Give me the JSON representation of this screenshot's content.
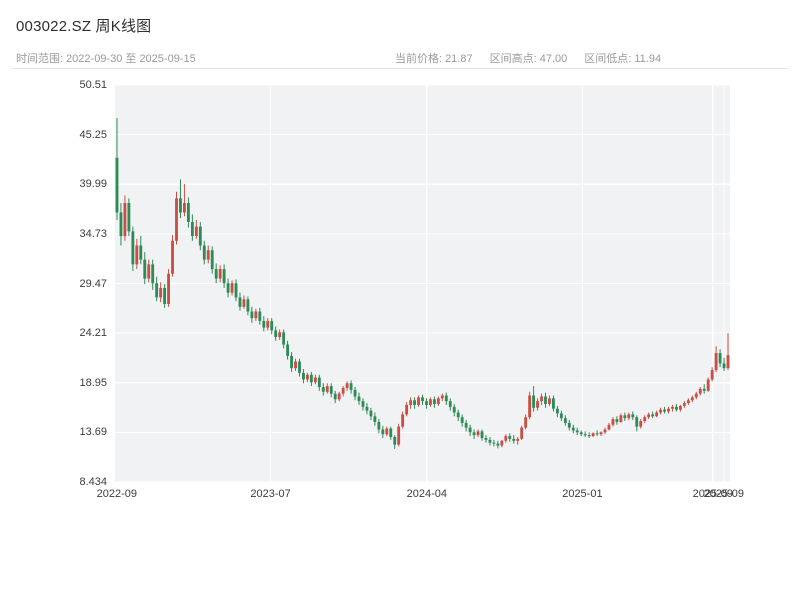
{
  "page": {
    "title": "003022.SZ 周K线图"
  },
  "header": {
    "range_label": "时间范围:",
    "range_value": "2022-09-30 至 2025-09-15",
    "stats": [
      {
        "label": "当前价格:",
        "value": "21.87"
      },
      {
        "label": "区间高点:",
        "value": "47.00"
      },
      {
        "label": "区间低点:",
        "value": "11.94"
      }
    ]
  },
  "chart_data": {
    "type": "candlestick",
    "title": "003022.SZ 周K线图",
    "symbol": "003022.SZ",
    "interval": "weekly",
    "current_price": 21.87,
    "range_high": 47.0,
    "range_low": 11.94,
    "ylim": [
      8.434,
      50.51
    ],
    "y_ticks": [
      "50.51",
      "45.25",
      "39.99",
      "34.73",
      "29.47",
      "24.21",
      "18.95",
      "13.69",
      "8.434"
    ],
    "x_ticks": [
      {
        "label": "2022-09",
        "pos": 0.003
      },
      {
        "label": "2023-07",
        "pos": 0.253
      },
      {
        "label": "2024-04",
        "pos": 0.507
      },
      {
        "label": "2025-01",
        "pos": 0.76
      },
      {
        "label": "2025-09",
        "pos": 0.972
      },
      {
        "label": "2025-09",
        "pos": 0.99
      }
    ],
    "grid": true,
    "colors": {
      "up": "#c94f44",
      "down": "#2e8b57",
      "plot_bg": "#f1f2f4",
      "grid": "#ffffff"
    },
    "columns": [
      "date",
      "open",
      "high",
      "low",
      "close"
    ],
    "candles": [
      [
        "2022-09-30",
        42.8,
        47.0,
        36.2,
        37.0
      ],
      [
        "2022-10-07",
        37.0,
        38.0,
        33.5,
        34.5
      ],
      [
        "2022-10-14",
        34.5,
        38.8,
        34.0,
        38.0
      ],
      [
        "2022-10-21",
        38.0,
        38.5,
        34.5,
        35.0
      ],
      [
        "2022-10-28",
        35.0,
        35.5,
        30.8,
        31.5
      ],
      [
        "2022-11-04",
        31.5,
        34.2,
        31.0,
        33.5
      ],
      [
        "2022-11-11",
        33.5,
        34.5,
        31.5,
        32.0
      ],
      [
        "2022-11-18",
        32.0,
        32.8,
        29.4,
        30.0
      ],
      [
        "2022-11-25",
        30.0,
        32.0,
        29.6,
        31.5
      ],
      [
        "2022-12-02",
        31.5,
        32.0,
        28.8,
        29.5
      ],
      [
        "2022-12-09",
        29.5,
        30.2,
        27.6,
        28.0
      ],
      [
        "2022-12-16",
        28.0,
        29.6,
        27.5,
        29.0
      ],
      [
        "2022-12-23",
        29.0,
        29.4,
        26.9,
        27.3
      ],
      [
        "2022-12-30",
        27.3,
        31.0,
        27.0,
        30.5
      ],
      [
        "2023-01-06",
        30.5,
        34.6,
        30.2,
        34.0
      ],
      [
        "2023-01-13",
        34.0,
        39.2,
        33.6,
        38.5
      ],
      [
        "2023-01-20",
        38.5,
        40.5,
        36.4,
        37.0
      ],
      [
        "2023-01-27",
        37.0,
        40.0,
        36.6,
        38.0
      ],
      [
        "2023-02-03",
        38.0,
        38.6,
        35.4,
        36.0
      ],
      [
        "2023-02-10",
        36.0,
        36.8,
        34.0,
        34.5
      ],
      [
        "2023-02-17",
        34.5,
        36.2,
        34.2,
        35.5
      ],
      [
        "2023-02-24",
        35.5,
        36.0,
        33.0,
        33.5
      ],
      [
        "2023-03-03",
        33.5,
        34.0,
        31.5,
        32.0
      ],
      [
        "2023-03-10",
        32.0,
        33.5,
        31.6,
        33.0
      ],
      [
        "2023-03-17",
        33.0,
        33.4,
        30.5,
        31.0
      ],
      [
        "2023-03-24",
        31.0,
        31.6,
        29.5,
        30.0
      ],
      [
        "2023-03-31",
        30.0,
        31.4,
        29.6,
        31.0
      ],
      [
        "2023-04-07",
        31.0,
        31.5,
        29.0,
        29.5
      ],
      [
        "2023-04-14",
        29.5,
        30.0,
        28.0,
        28.5
      ],
      [
        "2023-04-21",
        28.5,
        29.8,
        28.2,
        29.5
      ],
      [
        "2023-04-28",
        29.5,
        29.9,
        27.6,
        28.0
      ],
      [
        "2023-05-05",
        28.0,
        28.5,
        26.6,
        27.0
      ],
      [
        "2023-05-12",
        27.0,
        28.2,
        26.8,
        27.8
      ],
      [
        "2023-05-19",
        27.8,
        28.1,
        26.1,
        26.5
      ],
      [
        "2023-05-26",
        26.5,
        27.0,
        25.3,
        25.8
      ],
      [
        "2023-06-02",
        25.8,
        26.8,
        25.5,
        26.5
      ],
      [
        "2023-06-09",
        26.5,
        26.9,
        25.1,
        25.5
      ],
      [
        "2023-06-16",
        25.5,
        26.0,
        24.4,
        24.8
      ],
      [
        "2023-06-23",
        24.8,
        25.8,
        24.5,
        25.5
      ],
      [
        "2023-06-30",
        25.5,
        25.8,
        24.1,
        24.5
      ],
      [
        "2023-07-07",
        24.5,
        24.9,
        23.4,
        23.8
      ],
      [
        "2023-07-14",
        23.8,
        24.6,
        23.5,
        24.3
      ],
      [
        "2023-07-21",
        24.3,
        24.6,
        22.6,
        23.0
      ],
      [
        "2023-07-28",
        23.0,
        23.4,
        21.4,
        21.8
      ],
      [
        "2023-08-04",
        21.8,
        22.2,
        20.1,
        20.5
      ],
      [
        "2023-08-11",
        20.5,
        21.5,
        20.2,
        21.2
      ],
      [
        "2023-08-18",
        21.2,
        21.5,
        19.6,
        20.0
      ],
      [
        "2023-08-25",
        20.0,
        20.4,
        18.9,
        19.3
      ],
      [
        "2023-09-01",
        19.3,
        20.0,
        19.0,
        19.8
      ],
      [
        "2023-09-08",
        19.8,
        20.1,
        18.6,
        19.0
      ],
      [
        "2023-09-15",
        19.0,
        19.8,
        18.8,
        19.5
      ],
      [
        "2023-09-22",
        19.5,
        19.8,
        18.1,
        18.5
      ],
      [
        "2023-09-29",
        18.5,
        18.9,
        17.6,
        18.0
      ],
      [
        "2023-10-06",
        18.0,
        18.9,
        17.8,
        18.6
      ],
      [
        "2023-10-13",
        18.6,
        18.9,
        17.4,
        17.8
      ],
      [
        "2023-10-20",
        17.8,
        18.1,
        16.8,
        17.2
      ],
      [
        "2023-10-27",
        17.2,
        18.0,
        17.0,
        17.8
      ],
      [
        "2023-11-03",
        17.8,
        18.6,
        17.5,
        18.4
      ],
      [
        "2023-11-10",
        18.4,
        19.1,
        18.1,
        18.9
      ],
      [
        "2023-11-17",
        18.9,
        19.2,
        17.8,
        18.2
      ],
      [
        "2023-11-24",
        18.2,
        18.5,
        17.1,
        17.5
      ],
      [
        "2023-12-01",
        17.5,
        17.9,
        16.6,
        17.0
      ],
      [
        "2023-12-08",
        17.0,
        17.3,
        16.0,
        16.4
      ],
      [
        "2023-12-15",
        16.4,
        16.8,
        15.6,
        16.0
      ],
      [
        "2023-12-22",
        16.0,
        16.3,
        15.0,
        15.4
      ],
      [
        "2023-12-29",
        15.4,
        15.8,
        14.4,
        14.8
      ],
      [
        "2024-01-05",
        14.8,
        15.1,
        13.6,
        14.0
      ],
      [
        "2024-01-12",
        14.0,
        14.4,
        13.1,
        13.5
      ],
      [
        "2024-01-19",
        13.5,
        14.3,
        13.3,
        14.1
      ],
      [
        "2024-01-26",
        14.1,
        14.3,
        12.9,
        13.2
      ],
      [
        "2024-02-02",
        13.2,
        13.4,
        11.94,
        12.4
      ],
      [
        "2024-02-09",
        12.4,
        14.6,
        12.2,
        14.3
      ],
      [
        "2024-02-16",
        14.3,
        15.9,
        14.1,
        15.6
      ],
      [
        "2024-02-23",
        15.6,
        16.9,
        15.4,
        16.6
      ],
      [
        "2024-03-01",
        16.6,
        17.4,
        16.2,
        17.1
      ],
      [
        "2024-03-08",
        17.1,
        17.4,
        16.2,
        16.6
      ],
      [
        "2024-03-15",
        16.6,
        17.6,
        16.4,
        17.4
      ],
      [
        "2024-03-22",
        17.4,
        17.7,
        16.6,
        17.0
      ],
      [
        "2024-03-29",
        17.0,
        17.3,
        16.2,
        16.6
      ],
      [
        "2024-04-05",
        16.6,
        17.4,
        16.4,
        17.2
      ],
      [
        "2024-04-12",
        17.2,
        17.5,
        16.3,
        16.7
      ],
      [
        "2024-04-19",
        16.7,
        17.5,
        16.5,
        17.3
      ],
      [
        "2024-04-26",
        17.3,
        17.8,
        17.0,
        17.6
      ],
      [
        "2024-05-03",
        17.6,
        17.9,
        16.6,
        17.0
      ],
      [
        "2024-05-10",
        17.0,
        17.3,
        16.0,
        16.4
      ],
      [
        "2024-05-17",
        16.4,
        16.7,
        15.4,
        15.8
      ],
      [
        "2024-05-24",
        15.8,
        16.1,
        14.9,
        15.3
      ],
      [
        "2024-05-31",
        15.3,
        15.6,
        14.3,
        14.7
      ],
      [
        "2024-06-07",
        14.7,
        15.0,
        13.8,
        14.2
      ],
      [
        "2024-06-14",
        14.2,
        14.5,
        13.3,
        13.7
      ],
      [
        "2024-06-21",
        13.7,
        14.0,
        13.0,
        13.4
      ],
      [
        "2024-06-28",
        13.4,
        14.0,
        13.2,
        13.8
      ],
      [
        "2024-07-05",
        13.8,
        14.0,
        12.8,
        13.1
      ],
      [
        "2024-07-12",
        13.1,
        13.4,
        12.6,
        12.9
      ],
      [
        "2024-07-19",
        12.9,
        13.2,
        12.3,
        12.6
      ],
      [
        "2024-07-26",
        12.6,
        12.9,
        12.2,
        12.5
      ],
      [
        "2024-08-02",
        12.5,
        12.8,
        12.0,
        12.3
      ],
      [
        "2024-08-09",
        12.3,
        12.9,
        12.1,
        12.8
      ],
      [
        "2024-08-16",
        12.8,
        13.5,
        12.6,
        13.3
      ],
      [
        "2024-08-23",
        13.3,
        13.6,
        12.7,
        13.0
      ],
      [
        "2024-08-30",
        13.0,
        13.4,
        12.5,
        12.8
      ],
      [
        "2024-09-06",
        12.8,
        13.2,
        12.4,
        13.0
      ],
      [
        "2024-09-13",
        13.0,
        14.4,
        12.9,
        14.2
      ],
      [
        "2024-09-20",
        14.2,
        15.6,
        14.0,
        15.3
      ],
      [
        "2024-09-27",
        15.3,
        18.0,
        15.1,
        17.6
      ],
      [
        "2024-10-04",
        17.6,
        18.6,
        15.9,
        16.3
      ],
      [
        "2024-10-11",
        16.3,
        17.3,
        16.0,
        17.0
      ],
      [
        "2024-10-18",
        17.0,
        17.8,
        16.6,
        17.5
      ],
      [
        "2024-10-25",
        17.5,
        17.9,
        16.3,
        16.7
      ],
      [
        "2024-11-01",
        16.7,
        17.6,
        16.5,
        17.3
      ],
      [
        "2024-11-08",
        17.3,
        17.6,
        15.9,
        16.2
      ],
      [
        "2024-11-15",
        16.2,
        16.5,
        15.3,
        15.7
      ],
      [
        "2024-11-22",
        15.7,
        16.0,
        14.9,
        15.2
      ],
      [
        "2024-11-29",
        15.2,
        15.5,
        14.4,
        14.7
      ],
      [
        "2024-12-06",
        14.7,
        15.0,
        13.9,
        14.2
      ],
      [
        "2024-12-13",
        14.2,
        14.5,
        13.6,
        13.9
      ],
      [
        "2024-12-20",
        13.9,
        14.2,
        13.4,
        13.7
      ],
      [
        "2024-12-27",
        13.7,
        13.9,
        13.3,
        13.5
      ],
      [
        "2025-01-03",
        13.5,
        13.8,
        13.2,
        13.4
      ],
      [
        "2025-01-10",
        13.4,
        13.7,
        13.1,
        13.3
      ],
      [
        "2025-01-17",
        13.3,
        13.7,
        13.2,
        13.6
      ],
      [
        "2025-01-24",
        13.6,
        13.9,
        13.3,
        13.5
      ],
      [
        "2025-01-31",
        13.5,
        13.8,
        13.3,
        13.7
      ],
      [
        "2025-02-07",
        13.7,
        14.2,
        13.5,
        14.0
      ],
      [
        "2025-02-14",
        14.0,
        14.7,
        13.9,
        14.5
      ],
      [
        "2025-02-21",
        14.5,
        15.3,
        14.3,
        15.1
      ],
      [
        "2025-02-28",
        15.1,
        15.4,
        14.5,
        14.8
      ],
      [
        "2025-03-07",
        14.8,
        15.7,
        14.7,
        15.5
      ],
      [
        "2025-03-14",
        15.5,
        15.8,
        14.9,
        15.2
      ],
      [
        "2025-03-21",
        15.2,
        15.8,
        15.0,
        15.6
      ],
      [
        "2025-03-28",
        15.6,
        15.9,
        15.0,
        15.3
      ],
      [
        "2025-04-04",
        15.3,
        15.5,
        13.8,
        14.3
      ],
      [
        "2025-04-11",
        14.3,
        15.1,
        14.1,
        14.9
      ],
      [
        "2025-04-18",
        14.9,
        15.5,
        14.7,
        15.3
      ],
      [
        "2025-04-25",
        15.3,
        15.8,
        15.1,
        15.6
      ],
      [
        "2025-05-02",
        15.6,
        15.9,
        15.2,
        15.4
      ],
      [
        "2025-05-09",
        15.4,
        16.0,
        15.3,
        15.8
      ],
      [
        "2025-05-16",
        15.8,
        16.3,
        15.6,
        16.1
      ],
      [
        "2025-05-23",
        16.1,
        16.4,
        15.7,
        15.9
      ],
      [
        "2025-05-30",
        15.9,
        16.4,
        15.7,
        16.2
      ],
      [
        "2025-06-06",
        16.2,
        16.6,
        15.9,
        16.4
      ],
      [
        "2025-06-13",
        16.4,
        16.7,
        15.9,
        16.1
      ],
      [
        "2025-06-20",
        16.1,
        16.6,
        15.9,
        16.5
      ],
      [
        "2025-06-27",
        16.5,
        17.0,
        16.3,
        16.8
      ],
      [
        "2025-07-04",
        16.8,
        17.3,
        16.6,
        17.1
      ],
      [
        "2025-07-11",
        17.1,
        17.6,
        16.9,
        17.4
      ],
      [
        "2025-07-18",
        17.4,
        18.0,
        17.2,
        17.8
      ],
      [
        "2025-07-25",
        17.8,
        18.5,
        17.6,
        18.3
      ],
      [
        "2025-08-01",
        18.3,
        18.8,
        17.8,
        18.1
      ],
      [
        "2025-08-08",
        18.1,
        19.5,
        18.0,
        19.3
      ],
      [
        "2025-08-15",
        19.3,
        20.6,
        19.1,
        20.3
      ],
      [
        "2025-08-22",
        20.3,
        22.8,
        20.1,
        22.1
      ],
      [
        "2025-08-29",
        22.1,
        22.5,
        20.6,
        21.0
      ],
      [
        "2025-09-05",
        21.0,
        21.6,
        20.2,
        20.5
      ],
      [
        "2025-09-12",
        20.5,
        24.2,
        20.3,
        21.87
      ]
    ]
  }
}
